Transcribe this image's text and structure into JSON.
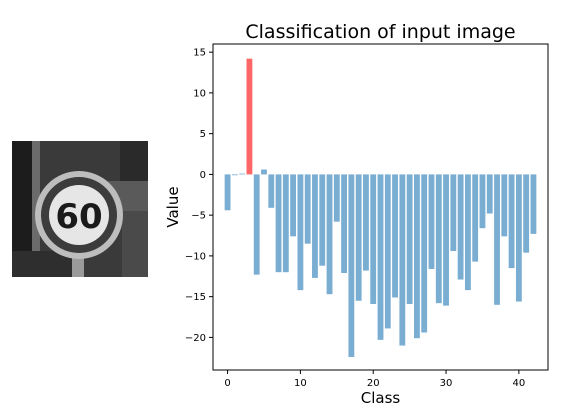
{
  "input_image": {
    "icon": "speed-limit-60-sign-thumbnail",
    "sign_text": "60"
  },
  "chart_data": {
    "type": "bar",
    "title": "Classification of input image",
    "xlabel": "Class",
    "ylabel": "Value",
    "xlim": [
      -2,
      44
    ],
    "ylim": [
      -24,
      16
    ],
    "xticks": [
      0,
      10,
      20,
      30,
      40
    ],
    "yticks": [
      -20,
      -15,
      -10,
      -5,
      0,
      5,
      10,
      15
    ],
    "grid": false,
    "bar_color": "#1f77b4",
    "highlight_color": "#ff0000",
    "highlight_index": 3,
    "x": [
      0,
      1,
      2,
      3,
      4,
      5,
      6,
      7,
      8,
      9,
      10,
      11,
      12,
      13,
      14,
      15,
      16,
      17,
      18,
      19,
      20,
      21,
      22,
      23,
      24,
      25,
      26,
      27,
      28,
      29,
      30,
      31,
      32,
      33,
      34,
      35,
      36,
      37,
      38,
      39,
      40,
      41,
      42
    ],
    "values": [
      -4.4,
      -0.1,
      0.1,
      14.2,
      -12.3,
      0.6,
      -4.1,
      -12.0,
      -12.0,
      -7.6,
      -14.2,
      -8.5,
      -12.7,
      -11.2,
      -14.7,
      -5.8,
      -12.1,
      -22.4,
      -15.5,
      -11.8,
      -15.9,
      -20.3,
      -18.9,
      -15.1,
      -21.0,
      -15.9,
      -20.1,
      -19.4,
      -11.6,
      -15.8,
      -16.1,
      -9.4,
      -12.9,
      -14.2,
      -10.7,
      -6.6,
      -4.8,
      -16.0,
      -7.6,
      -11.5,
      -15.6,
      -9.6,
      -7.3
    ]
  }
}
